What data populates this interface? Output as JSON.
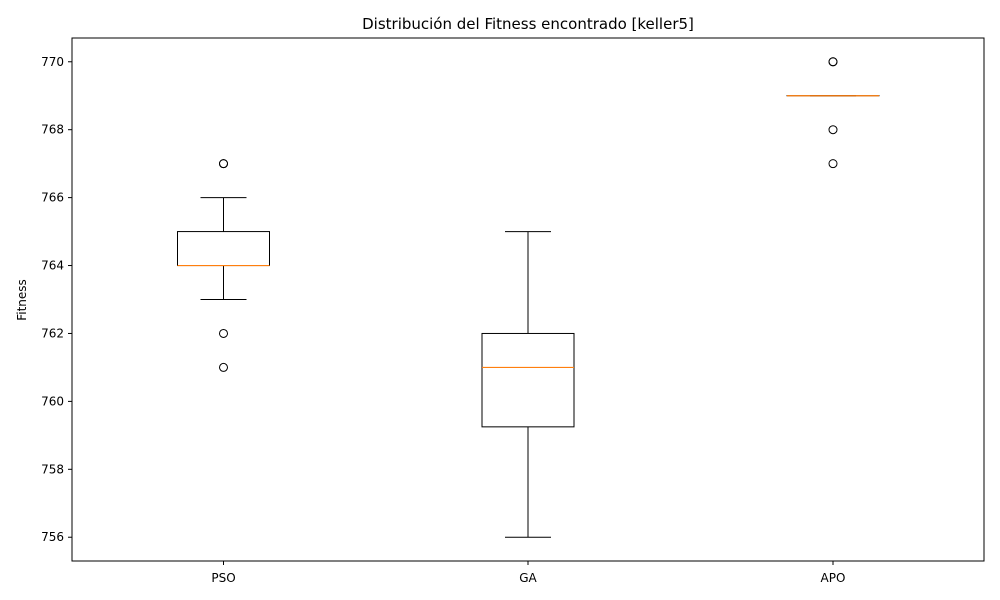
{
  "chart_data": {
    "type": "boxplot",
    "title": "Distribución del Fitness encontrado [keller5]",
    "xlabel": "",
    "ylabel": "Fitness",
    "ylim": [
      755.3,
      770.7
    ],
    "yticks": [
      756,
      758,
      760,
      762,
      764,
      766,
      768,
      770
    ],
    "categories": [
      "PSO",
      "GA",
      "APO"
    ],
    "boxes": [
      {
        "category": "PSO",
        "whisker_low": 763,
        "q1": 764,
        "median": 764,
        "q3": 765,
        "whisker_high": 766,
        "outliers": [
          767,
          767,
          762,
          761
        ]
      },
      {
        "category": "GA",
        "whisker_low": 756,
        "q1": 759.25,
        "median": 761,
        "q3": 762,
        "whisker_high": 765,
        "outliers": []
      },
      {
        "category": "APO",
        "whisker_low": 769,
        "q1": 769,
        "median": 769,
        "q3": 769,
        "whisker_high": 769,
        "outliers": [
          770,
          770,
          768,
          767
        ]
      }
    ],
    "grid": false,
    "colors": {
      "box": "#000000",
      "median": "#ff7f0e"
    }
  }
}
